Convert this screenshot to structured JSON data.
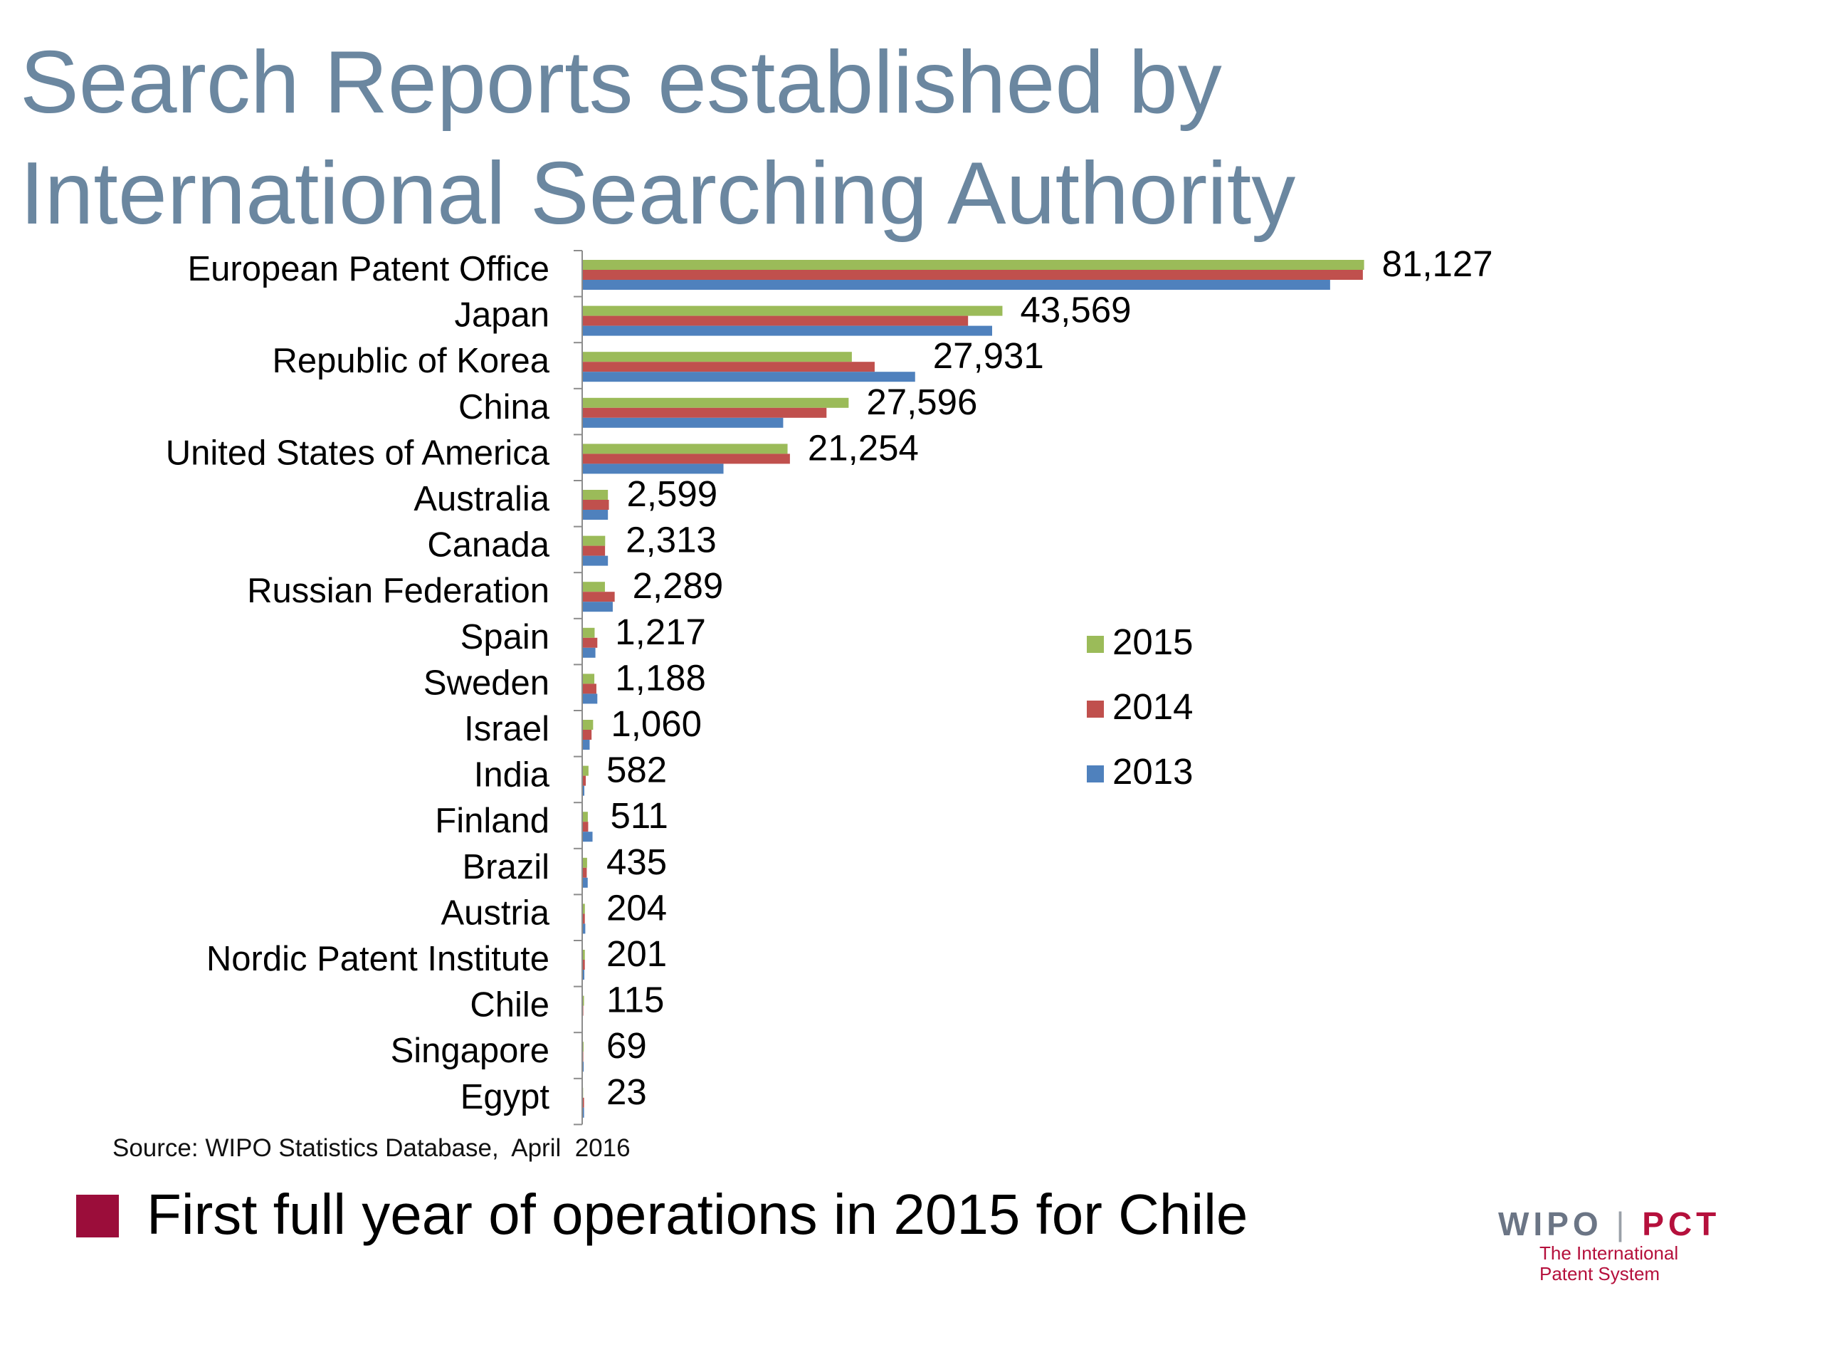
{
  "title": {
    "line1": "Search Reports established by",
    "line2": "International Searching Authority"
  },
  "chart_data": {
    "type": "bar",
    "orientation": "horizontal",
    "categories": [
      "European Patent Office",
      "Japan",
      "Republic of Korea",
      "China",
      "United States of America",
      "Australia",
      "Canada",
      "Russian Federation",
      "Spain",
      "Sweden",
      "Israel",
      "India",
      "Finland",
      "Brazil",
      "Austria",
      "Nordic Patent Institute",
      "Chile",
      "Singapore",
      "Egypt"
    ],
    "series": [
      {
        "name": "2015",
        "color": "#9bbb59",
        "values": [
          81127,
          43569,
          27931,
          27596,
          21254,
          2599,
          2313,
          2289,
          1217,
          1188,
          1060,
          582,
          511,
          435,
          204,
          201,
          115,
          69,
          23
        ]
      },
      {
        "name": "2014",
        "color": "#c0504d",
        "values": [
          81000,
          40000,
          30300,
          25300,
          21500,
          2700,
          2300,
          3300,
          1500,
          1400,
          900,
          300,
          550,
          400,
          200,
          200,
          40,
          40,
          120
        ]
      },
      {
        "name": "2013",
        "color": "#4f81bd",
        "values": [
          77600,
          42500,
          34500,
          20800,
          14600,
          2600,
          2600,
          3100,
          1300,
          1500,
          700,
          150,
          1000,
          500,
          250,
          150,
          0,
          80,
          120
        ]
      }
    ],
    "data_labels": [
      "81,127",
      "43,569",
      "27,931",
      "27,596",
      "21,254",
      "2,599",
      "2,313",
      "2,289",
      "1,217",
      "1,188",
      "1,060",
      "582",
      "511",
      "435",
      "204",
      "201",
      "115",
      "69",
      "23"
    ],
    "xlim": [
      0,
      85000
    ],
    "legend_position": "right"
  },
  "legend": [
    {
      "label": "2015",
      "color": "#9bbb59"
    },
    {
      "label": "2014",
      "color": "#c0504d"
    },
    {
      "label": "2013",
      "color": "#4f81bd"
    }
  ],
  "source": "Source: WIPO Statistics Database,  April  2016",
  "note": {
    "bullet_color": "#9b0d3a",
    "text": "First full year of operations in 2015 for Chile"
  },
  "logo": {
    "wipo": "WIPO",
    "separator": "|",
    "pct": "PCT",
    "tagline_1": "The International",
    "tagline_2": "Patent System"
  }
}
